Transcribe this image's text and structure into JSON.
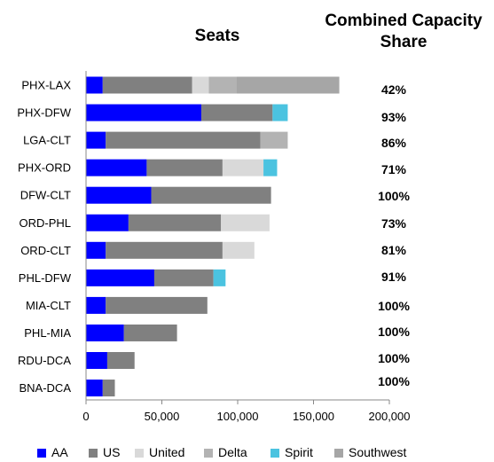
{
  "chart_data": {
    "type": "bar",
    "orientation": "horizontal",
    "stacked": true,
    "title": "Seats",
    "share_title_line1": "Combined Capacity",
    "share_title_line2": "Share",
    "categories": [
      "PHX-LAX",
      "PHX-DFW",
      "LGA-CLT",
      "PHX-ORD",
      "DFW-CLT",
      "ORD-PHL",
      "ORD-CLT",
      "PHL-DFW",
      "MIA-CLT",
      "PHL-MIA",
      "RDU-DCA",
      "BNA-DCA"
    ],
    "series": [
      {
        "name": "AA",
        "color": "#0000ff",
        "values": [
          11000,
          76000,
          13000,
          40000,
          43000,
          28000,
          13000,
          45000,
          13000,
          25000,
          14000,
          11000
        ]
      },
      {
        "name": "US",
        "color": "#808080",
        "values": [
          59000,
          47000,
          102000,
          50000,
          79000,
          61000,
          77000,
          39000,
          67000,
          35000,
          18000,
          8000
        ]
      },
      {
        "name": "United",
        "color": "#d9d9d9",
        "values": [
          11000,
          0,
          0,
          27000,
          0,
          32000,
          21000,
          0,
          0,
          0,
          0,
          0
        ]
      },
      {
        "name": "Delta",
        "color": "#b3b3b3",
        "values": [
          18000,
          0,
          18000,
          0,
          0,
          0,
          0,
          0,
          0,
          0,
          0,
          0
        ]
      },
      {
        "name": "Spirit",
        "color": "#4bc3e0",
        "values": [
          0,
          10000,
          0,
          9000,
          0,
          0,
          0,
          8000,
          0,
          0,
          0,
          0
        ]
      },
      {
        "name": "Southwest",
        "color": "#a6a6a6",
        "values": [
          68000,
          0,
          0,
          0,
          0,
          0,
          0,
          0,
          0,
          0,
          0,
          0
        ]
      }
    ],
    "shares": [
      "42%",
      "93%",
      "86%",
      "71%",
      "100%",
      "73%",
      "81%",
      "91%",
      "100%",
      "100%",
      "100%",
      "100%"
    ],
    "xlim": [
      0,
      200000
    ],
    "xticks": [
      0,
      50000,
      100000,
      150000,
      200000
    ],
    "xtick_labels": [
      "0",
      "50,000",
      "100,000",
      "150,000",
      "200,000"
    ],
    "grid": false,
    "legend_position": "bottom"
  }
}
